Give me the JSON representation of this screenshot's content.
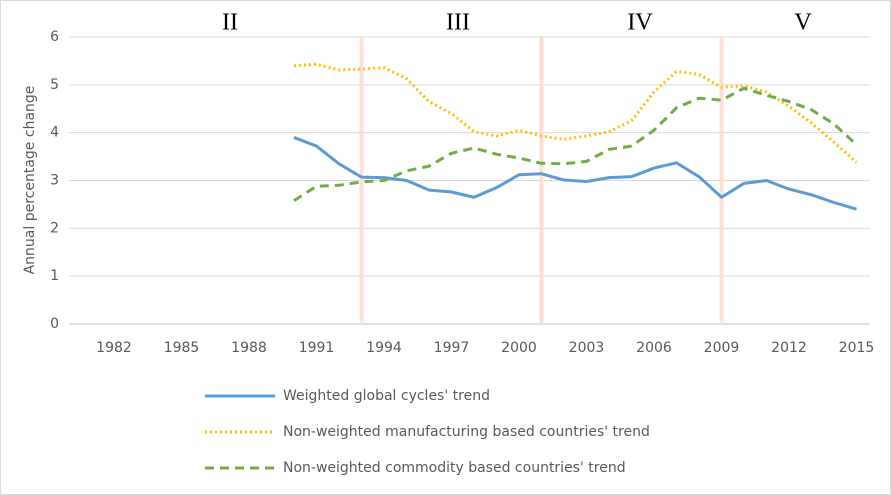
{
  "chart_data": {
    "type": "line",
    "y_label": "Annual percentage change",
    "x": [
      1990,
      1991,
      1992,
      1993,
      1994,
      1995,
      1996,
      1997,
      1998,
      1999,
      2000,
      2001,
      2002,
      2003,
      2004,
      2005,
      2006,
      2007,
      2008,
      2009,
      2010,
      2011,
      2012,
      2013,
      2014,
      2015
    ],
    "series": [
      {
        "name": "Weighted global cycles' trend",
        "color": "#5b9bd5",
        "dash": "solid",
        "values": [
          3.9,
          3.72,
          3.35,
          3.07,
          3.06,
          3.0,
          2.8,
          2.76,
          2.65,
          2.85,
          3.12,
          3.14,
          3.01,
          2.98,
          3.06,
          3.08,
          3.26,
          3.37,
          3.08,
          2.65,
          2.94,
          3.0,
          2.82,
          2.7,
          2.54,
          2.4
        ]
      },
      {
        "name": "Non-weighted manufacturing based countries' trend",
        "color": "#ffc000",
        "dash": "dot",
        "values": [
          5.4,
          5.43,
          5.31,
          5.33,
          5.36,
          5.13,
          4.65,
          4.4,
          4.02,
          3.93,
          4.05,
          3.93,
          3.86,
          3.93,
          4.02,
          4.25,
          4.85,
          5.28,
          5.22,
          4.95,
          4.98,
          4.85,
          4.55,
          4.2,
          3.8,
          3.38
        ]
      },
      {
        "name": "Non-weighted commodity based countries' trend",
        "color": "#70ad47",
        "dash": "dash",
        "values": [
          2.58,
          2.88,
          2.9,
          2.97,
          3.0,
          3.2,
          3.3,
          3.57,
          3.68,
          3.55,
          3.47,
          3.36,
          3.35,
          3.4,
          3.65,
          3.72,
          4.05,
          4.52,
          4.72,
          4.68,
          4.93,
          4.78,
          4.65,
          4.48,
          4.18,
          3.75
        ]
      }
    ],
    "xlim": [
      1980,
      2015.6
    ],
    "xticks": [
      1982,
      1985,
      1988,
      1991,
      1994,
      1997,
      2000,
      2003,
      2006,
      2009,
      2012,
      2015
    ],
    "ylim": [
      0,
      6
    ],
    "yticks": [
      0,
      1,
      2,
      3,
      4,
      5,
      6
    ],
    "period_breaks": [
      1993,
      2001,
      2009
    ],
    "period_break_color": "#fbe0d4",
    "annotations": [
      "II",
      "III",
      "IV",
      "V"
    ],
    "grid": true,
    "legend": "bottom"
  }
}
